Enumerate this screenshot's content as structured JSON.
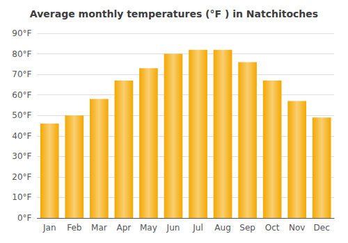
{
  "chart_data": {
    "type": "bar",
    "title": "Average monthly temperatures (°F ) in Natchitoches",
    "categories": [
      "Jan",
      "Feb",
      "Mar",
      "Apr",
      "May",
      "Jun",
      "Jul",
      "Aug",
      "Sep",
      "Oct",
      "Nov",
      "Dec"
    ],
    "values": [
      46,
      50,
      58,
      67,
      73,
      80,
      82,
      82,
      76,
      67,
      57,
      49
    ],
    "color": "#F5A800",
    "ylim": [
      0,
      90
    ],
    "yticks": [
      {
        "value": 0,
        "label": "0°F"
      },
      {
        "value": 10,
        "label": "10°F"
      },
      {
        "value": 20,
        "label": "20°F"
      },
      {
        "value": 30,
        "label": "30°F"
      },
      {
        "value": 40,
        "label": "40°F"
      },
      {
        "value": 50,
        "label": "50°F"
      },
      {
        "value": 60,
        "label": "60°F"
      },
      {
        "value": 70,
        "label": "70°F"
      },
      {
        "value": 80,
        "label": "80°F"
      },
      {
        "value": 90,
        "label": "90°F"
      }
    ],
    "grid": true
  }
}
